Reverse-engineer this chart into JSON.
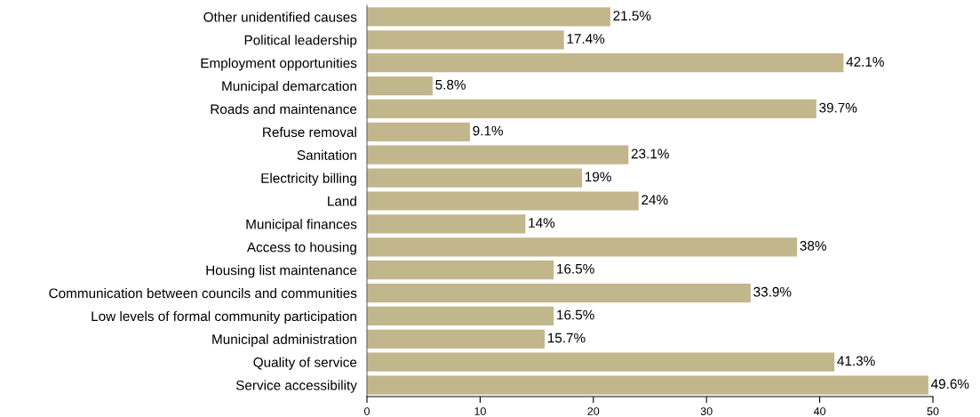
{
  "chart_data": {
    "type": "bar",
    "orientation": "horizontal",
    "categories": [
      "Other unidentified causes",
      "Political leadership",
      "Employment opportunities",
      "Municipal demarcation",
      "Roads and maintenance",
      "Refuse removal",
      "Sanitation",
      "Electricity billing",
      "Land",
      "Municipal finances",
      "Access to housing",
      "Housing list maintenance",
      "Communication between councils and communities",
      "Low levels of formal community participation",
      "Municipal administration",
      "Quality of service",
      "Service accessibility"
    ],
    "values": [
      21.5,
      17.4,
      42.1,
      5.8,
      39.7,
      9.1,
      23.1,
      19,
      24,
      14,
      38,
      16.5,
      33.9,
      16.5,
      15.7,
      41.3,
      49.6
    ],
    "value_labels": [
      "21.5%",
      "17.4%",
      "42.1%",
      "5.8%",
      "39.7%",
      "9.1%",
      "23.1%",
      "19%",
      "24%",
      "14%",
      "38%",
      "16.5%",
      "33.9%",
      "16.5%",
      "15.7%",
      "41.3%",
      "49.6%"
    ],
    "color": "#c2b68c",
    "xlim": [
      0,
      50
    ],
    "xticks": [
      0,
      10,
      20,
      30,
      40,
      50
    ],
    "grid": false,
    "legend": false
  }
}
